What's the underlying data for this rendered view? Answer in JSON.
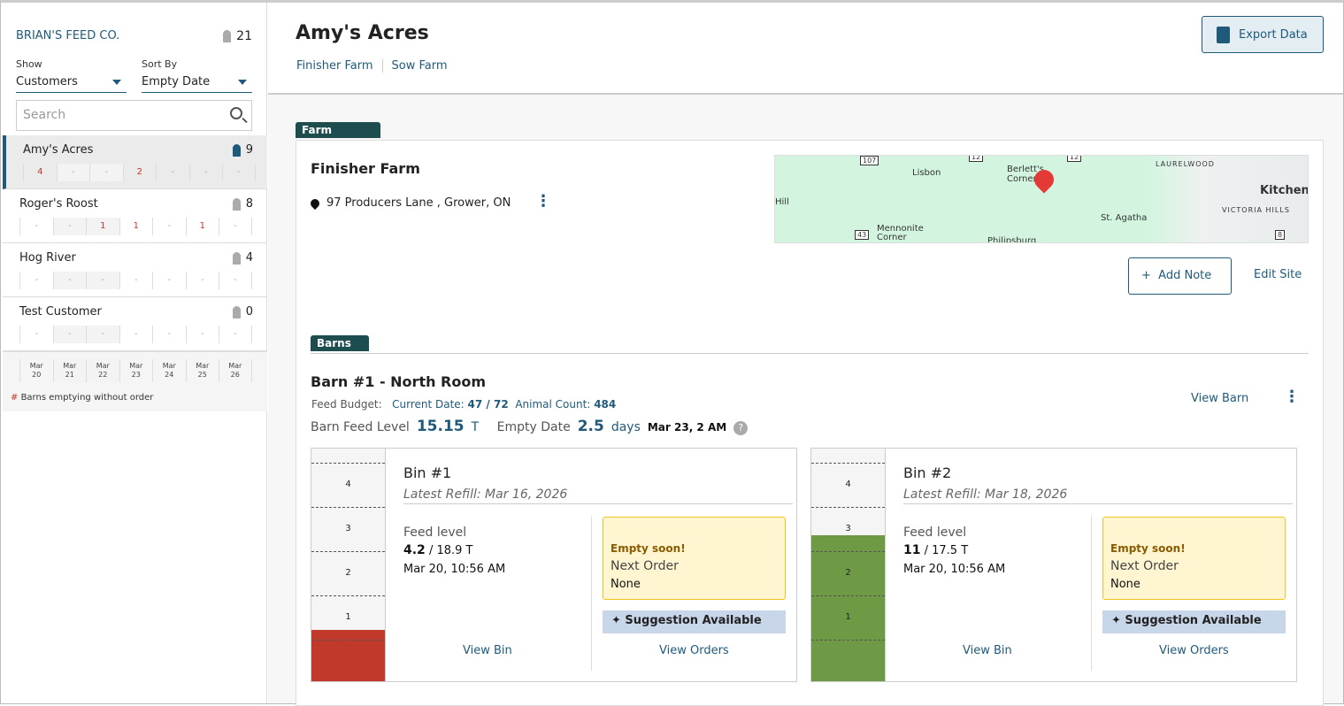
{
  "sidebar": {
    "brand": "BRIAN'S FEED CO.",
    "total_barns": "21",
    "show_label": "Show",
    "show_value": "Customers",
    "sort_label": "Sort By",
    "sort_value": "Empty Date",
    "search_placeholder": "Search",
    "customers": [
      {
        "name": "Amy's Acres",
        "count": "9",
        "cells": [
          "4",
          "-",
          "-",
          "2",
          "-",
          "-",
          "-"
        ],
        "active": true
      },
      {
        "name": "Roger's Roost",
        "count": "8",
        "cells": [
          "-",
          "-",
          "1",
          "1",
          "-",
          "1",
          "-"
        ]
      },
      {
        "name": "Hog River",
        "count": "4",
        "cells": [
          "-",
          "-",
          "-",
          "-",
          "-",
          "-",
          "-"
        ]
      },
      {
        "name": "Test Customer",
        "count": "0",
        "cells": [
          "-",
          "-",
          "-",
          "-",
          "-",
          "-",
          "-"
        ]
      }
    ],
    "dates": [
      [
        "Mar",
        "20"
      ],
      [
        "Mar",
        "21"
      ],
      [
        "Mar",
        "22"
      ],
      [
        "Mar",
        "23"
      ],
      [
        "Mar",
        "24"
      ],
      [
        "Mar",
        "25"
      ],
      [
        "Mar",
        "26"
      ]
    ],
    "legend_mark": "#",
    "legend_text": " Barns emptying without order"
  },
  "header": {
    "title": "Amy's Acres",
    "tabs": [
      "Finisher Farm",
      "Sow Farm"
    ],
    "export_label": "Export Data"
  },
  "farm": {
    "tag": "Farm",
    "name": "Finisher Farm",
    "address": "97 Producers Lane , Grower, ON",
    "map_labels": [
      "Lisbon",
      "Berlett's Corner",
      "Hill",
      "Mennonite Corner",
      "St. Agatha",
      "LAURELWOOD",
      "Kitchener",
      "VICTORIA HILLS",
      "Philipsburg",
      "107",
      "12",
      "12",
      "43",
      "8"
    ],
    "add_note": "Add Note",
    "edit_site": "Edit Site"
  },
  "barns": {
    "tag": "Barns",
    "title": "Barn #1 - North Room",
    "budget_label": "Feed Budget:",
    "current_date_label": "Current Date:",
    "current_date": "47 / 72",
    "animal_count_label": "Animal Count:",
    "animal_count": "484",
    "level_label": "Barn Feed Level",
    "level_value": "15.15",
    "level_unit": "T",
    "empty_label": "Empty Date",
    "empty_value": "2.5",
    "empty_unit": "days",
    "empty_date": "Mar 23, 2 AM",
    "help": "?",
    "view_barn": "View Barn"
  },
  "bins": [
    {
      "name": "Bin #1",
      "refill": "Latest Refill: Mar 16, 2026",
      "feed_label": "Feed level",
      "level": "4.2",
      "capacity": " / 18.9 T",
      "fill_fraction": 0.222,
      "fill_color": "#c0392b",
      "time": "Mar 20, 10:56 AM",
      "warn": "Empty soon!",
      "next_order_label": "Next Order",
      "next_order": "None",
      "suggestion": "Suggestion Available",
      "view_bin": "View Bin",
      "view_orders": "View Orders"
    },
    {
      "name": "Bin #2",
      "refill": "Latest Refill: Mar 18, 2026",
      "feed_label": "Feed level",
      "level": "11",
      "capacity": " / 17.5 T",
      "fill_fraction": 0.629,
      "fill_color": "#6f9a45",
      "time": "Mar 20, 10:56 AM",
      "warn": "Empty soon!",
      "next_order_label": "Next Order",
      "next_order": "None",
      "suggestion": "Suggestion Available",
      "view_bin": "View Bin",
      "view_orders": "View Orders"
    }
  ],
  "gauge_ticks": [
    "4",
    "3",
    "2",
    "1"
  ]
}
